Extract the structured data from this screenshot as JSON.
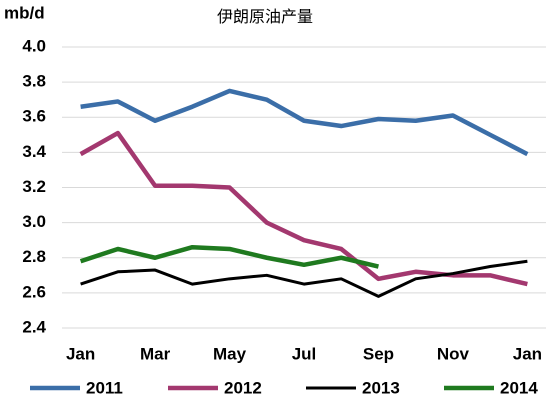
{
  "chart_data": {
    "type": "line",
    "title": "伊朗原油产量",
    "y_label": "mb/d",
    "categories": [
      "Jan",
      null,
      "Mar",
      null,
      "May",
      null,
      "Jul",
      null,
      "Sep",
      null,
      "Nov",
      null,
      "Jan"
    ],
    "series": [
      {
        "name": "2011",
        "color": "#3b6ea8",
        "values": [
          3.66,
          3.69,
          3.58,
          3.66,
          3.75,
          3.7,
          3.58,
          3.55,
          3.59,
          3.58,
          3.61,
          3.5,
          3.39
        ]
      },
      {
        "name": "2012",
        "color": "#a3386f",
        "values": [
          3.39,
          3.51,
          3.21,
          3.21,
          3.2,
          3.0,
          2.9,
          2.85,
          2.68,
          2.72,
          2.7,
          2.7,
          2.65
        ]
      },
      {
        "name": "2013",
        "color": "#000000",
        "values": [
          2.65,
          2.72,
          2.73,
          2.65,
          2.68,
          2.7,
          2.65,
          2.68,
          2.58,
          2.68,
          2.71,
          2.75,
          2.78
        ]
      },
      {
        "name": "2014",
        "color": "#1f7a1f",
        "values": [
          2.78,
          2.85,
          2.8,
          2.86,
          2.85,
          2.8,
          2.76,
          2.8,
          2.75,
          null,
          null,
          null,
          null
        ]
      }
    ],
    "ylim": [
      2.4,
      4.0
    ],
    "yticks": [
      2.4,
      2.6,
      2.8,
      {
        "value": 3.0,
        "label": "3.0"
      },
      3.2,
      3.4,
      3.6,
      3.8,
      {
        "value": 4.0,
        "label": "4.0"
      }
    ],
    "grid": true
  }
}
